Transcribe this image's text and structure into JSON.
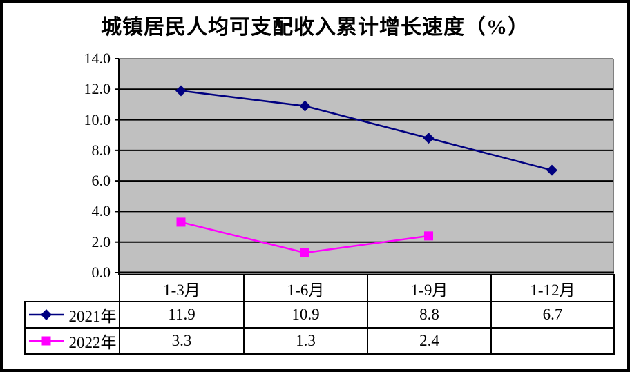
{
  "chart_data": {
    "type": "line",
    "title": "城镇居民人均可支配收入累计增长速度（%）",
    "categories": [
      "1-3月",
      "1-6月",
      "1-9月",
      "1-12月"
    ],
    "series": [
      {
        "name": "2021年",
        "color": "#000080",
        "marker": "diamond",
        "values": [
          11.9,
          10.9,
          8.8,
          6.7
        ]
      },
      {
        "name": "2022年",
        "color": "#FF00FF",
        "marker": "square",
        "values": [
          3.3,
          1.3,
          2.4,
          null
        ]
      }
    ],
    "xlabel": "",
    "ylabel": "",
    "ylim": [
      0,
      14
    ],
    "ytick_step": 2,
    "yticks_top_to_bottom": [
      "14.0",
      "12.0",
      "10.0",
      "8.0",
      "6.0",
      "4.0",
      "2.0",
      "0.0"
    ],
    "grid": true,
    "plot_bg": "#C0C0C0",
    "grid_color": "#000000",
    "plot_shadow_color": "#808080",
    "legend_position": "table-left"
  },
  "table": {
    "header": [
      "1-3月",
      "1-6月",
      "1-9月",
      "1-12月"
    ],
    "rows": [
      {
        "legend": "2021年",
        "values": [
          "11.9",
          "10.9",
          "8.8",
          "6.7"
        ]
      },
      {
        "legend": "2022年",
        "values": [
          "3.3",
          "1.3",
          "2.4",
          ""
        ]
      }
    ]
  }
}
